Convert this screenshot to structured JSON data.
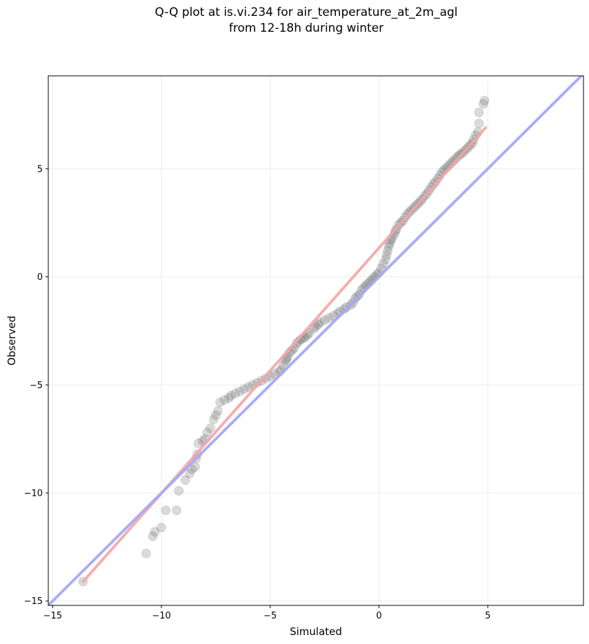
{
  "chart_data": {
    "type": "scatter",
    "title": "Q-Q plot at is.vi.234 for air_temperature_at_2m_agl",
    "subtitle": "from 12-18h during winter",
    "xlabel": "Simulated",
    "ylabel": "Observed",
    "xlim": [
      -15.2,
      9.4
    ],
    "ylim": [
      -15.2,
      9.3
    ],
    "xticks": [
      -15,
      -10,
      -5,
      0,
      5
    ],
    "yticks": [
      -15,
      -10,
      -5,
      0,
      5
    ],
    "xtick_labels": [
      "−15",
      "−10",
      "−5",
      "0",
      "5"
    ],
    "ytick_labels": [
      "−15",
      "−10",
      "−5",
      "0",
      "5"
    ],
    "grid": true,
    "colors": {
      "points": "#555555",
      "fit_line": "#f4a4a4",
      "identity_line": "#a8a8f4"
    },
    "points": [
      [
        -13.6,
        -14.1
      ],
      [
        -10.7,
        -12.8
      ],
      [
        -10.4,
        -12.0
      ],
      [
        -10.3,
        -11.8
      ],
      [
        -10.0,
        -11.6
      ],
      [
        -9.8,
        -10.8
      ],
      [
        -9.3,
        -10.8
      ],
      [
        -9.2,
        -9.9
      ],
      [
        -8.9,
        -9.4
      ],
      [
        -8.7,
        -9.1
      ],
      [
        -8.6,
        -8.9
      ],
      [
        -8.45,
        -8.8
      ],
      [
        -8.4,
        -8.4
      ],
      [
        -8.35,
        -8.2
      ],
      [
        -8.3,
        -7.7
      ],
      [
        -8.1,
        -7.6
      ],
      [
        -8.0,
        -7.5
      ],
      [
        -7.9,
        -7.2
      ],
      [
        -7.75,
        -7.0
      ],
      [
        -7.6,
        -6.6
      ],
      [
        -7.5,
        -6.4
      ],
      [
        -7.4,
        -6.2
      ],
      [
        -7.3,
        -5.8
      ],
      [
        -7.1,
        -5.7
      ],
      [
        -6.9,
        -5.6
      ],
      [
        -6.8,
        -5.5
      ],
      [
        -6.6,
        -5.4
      ],
      [
        -6.4,
        -5.3
      ],
      [
        -6.2,
        -5.2
      ],
      [
        -6.0,
        -5.1
      ],
      [
        -5.8,
        -5.0
      ],
      [
        -5.6,
        -4.9
      ],
      [
        -5.4,
        -4.8
      ],
      [
        -5.2,
        -4.7
      ],
      [
        -5.0,
        -4.6
      ],
      [
        -4.8,
        -4.5
      ],
      [
        -4.6,
        -4.4
      ],
      [
        -4.5,
        -4.3
      ],
      [
        -4.4,
        -4.1
      ],
      [
        -4.3,
        -3.9
      ],
      [
        -4.25,
        -3.8
      ],
      [
        -4.2,
        -3.7
      ],
      [
        -4.1,
        -3.5
      ],
      [
        -4.0,
        -3.4
      ],
      [
        -3.9,
        -3.3
      ],
      [
        -3.8,
        -3.1
      ],
      [
        -3.7,
        -3.0
      ],
      [
        -3.6,
        -2.9
      ],
      [
        -3.5,
        -2.85
      ],
      [
        -3.4,
        -2.8
      ],
      [
        -3.3,
        -2.7
      ],
      [
        -3.2,
        -2.6
      ],
      [
        -3.0,
        -2.4
      ],
      [
        -2.9,
        -2.3
      ],
      [
        -2.8,
        -2.2
      ],
      [
        -2.7,
        -2.1
      ],
      [
        -2.5,
        -2.0
      ],
      [
        -2.3,
        -1.9
      ],
      [
        -2.1,
        -1.8
      ],
      [
        -1.9,
        -1.7
      ],
      [
        -1.8,
        -1.6
      ],
      [
        -1.6,
        -1.5
      ],
      [
        -1.5,
        -1.4
      ],
      [
        -1.3,
        -1.3
      ],
      [
        -1.2,
        -1.2
      ],
      [
        -1.1,
        -1.0
      ],
      [
        -1.0,
        -0.9
      ],
      [
        -0.9,
        -0.8
      ],
      [
        -0.8,
        -0.6
      ],
      [
        -0.7,
        -0.5
      ],
      [
        -0.6,
        -0.4
      ],
      [
        -0.5,
        -0.3
      ],
      [
        -0.4,
        -0.2
      ],
      [
        -0.3,
        -0.1
      ],
      [
        -0.2,
        0.0
      ],
      [
        -0.1,
        0.1
      ],
      [
        0.0,
        0.2
      ],
      [
        0.1,
        0.4
      ],
      [
        0.2,
        0.6
      ],
      [
        0.3,
        0.8
      ],
      [
        0.35,
        1.0
      ],
      [
        0.4,
        1.2
      ],
      [
        0.45,
        1.4
      ],
      [
        0.5,
        1.55
      ],
      [
        0.55,
        1.7
      ],
      [
        0.6,
        1.8
      ],
      [
        0.7,
        1.95
      ],
      [
        0.75,
        2.1
      ],
      [
        0.8,
        2.2
      ],
      [
        0.9,
        2.4
      ],
      [
        1.0,
        2.5
      ],
      [
        1.1,
        2.6
      ],
      [
        1.2,
        2.75
      ],
      [
        1.3,
        2.9
      ],
      [
        1.4,
        3.0
      ],
      [
        1.5,
        3.1
      ],
      [
        1.6,
        3.2
      ],
      [
        1.7,
        3.3
      ],
      [
        1.8,
        3.4
      ],
      [
        1.9,
        3.5
      ],
      [
        2.0,
        3.6
      ],
      [
        2.1,
        3.75
      ],
      [
        2.2,
        3.85
      ],
      [
        2.3,
        4.0
      ],
      [
        2.4,
        4.15
      ],
      [
        2.5,
        4.3
      ],
      [
        2.6,
        4.4
      ],
      [
        2.7,
        4.55
      ],
      [
        2.8,
        4.7
      ],
      [
        2.9,
        4.85
      ],
      [
        3.0,
        4.95
      ],
      [
        3.1,
        5.05
      ],
      [
        3.2,
        5.15
      ],
      [
        3.3,
        5.25
      ],
      [
        3.4,
        5.35
      ],
      [
        3.5,
        5.45
      ],
      [
        3.6,
        5.55
      ],
      [
        3.7,
        5.65
      ],
      [
        3.8,
        5.7
      ],
      [
        3.9,
        5.8
      ],
      [
        4.0,
        5.9
      ],
      [
        4.1,
        6.0
      ],
      [
        4.2,
        6.1
      ],
      [
        4.3,
        6.2
      ],
      [
        4.35,
        6.35
      ],
      [
        4.45,
        6.55
      ],
      [
        4.55,
        6.7
      ],
      [
        4.6,
        7.1
      ],
      [
        4.6,
        7.6
      ],
      [
        4.8,
        8.0
      ],
      [
        4.85,
        8.15
      ]
    ],
    "fit_line": {
      "from": [
        -13.6,
        -14.1
      ],
      "to": [
        4.9,
        6.9
      ]
    },
    "identity_line": {
      "from": [
        -15.2,
        -15.2
      ],
      "to": [
        9.4,
        9.4
      ]
    }
  }
}
